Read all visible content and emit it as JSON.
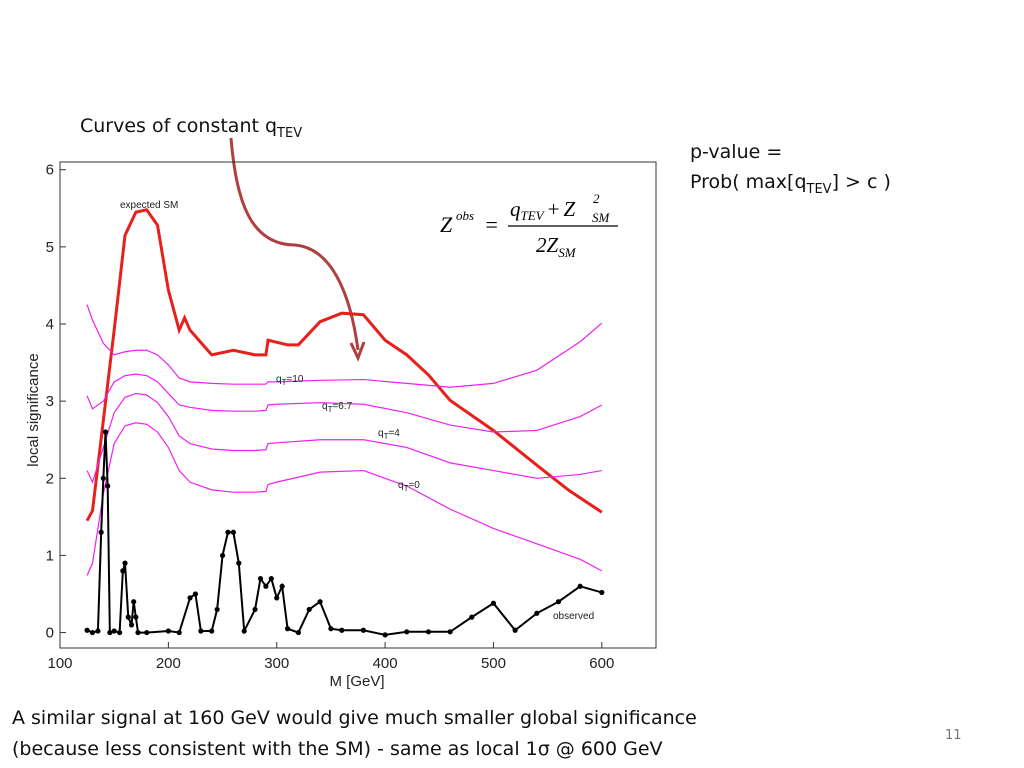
{
  "slide": {
    "annotation": [
      "Curves of constant q",
      "TEV"
    ],
    "pvalue": {
      "line1": "p-value =",
      "line2": [
        "Prob( max[q",
        "TEV",
        "] > c )"
      ]
    },
    "formula": {
      "lhs": "Z",
      "lhs_sup": "obs",
      "eq": "=",
      "num": [
        "q",
        "TEV",
        "+",
        "Z",
        "2",
        "SM"
      ],
      "den": [
        "2Z",
        "SM"
      ]
    },
    "caption": [
      "A similar signal at 160 GeV would give much smaller global significance",
      "(because less consistent with the SM)  - same as local 1σ @ 600 GeV"
    ],
    "page_number": "11"
  },
  "chart_data": {
    "type": "line",
    "x_label": "M [GeV]",
    "y_label": "local significance",
    "xlim": [
      100,
      650
    ],
    "ylim": [
      -0.2,
      6.1
    ],
    "xticks": [
      100,
      200,
      300,
      400,
      500,
      600
    ],
    "yticks": [
      0,
      1,
      2,
      3,
      4,
      5,
      6
    ],
    "grid": false,
    "series": [
      {
        "name": "expected SM",
        "color": "#e8201c",
        "markers": false,
        "x": [
          125,
          130,
          140,
          150,
          160,
          170,
          180,
          190,
          200,
          210,
          215,
          220,
          240,
          260,
          280,
          290,
          292,
          310,
          320,
          340,
          360,
          380,
          400,
          420,
          440,
          460,
          500,
          540,
          570,
          600
        ],
        "values": [
          1.45,
          1.58,
          2.75,
          3.92,
          5.15,
          5.45,
          5.48,
          5.28,
          4.44,
          3.92,
          4.08,
          3.92,
          3.6,
          3.66,
          3.6,
          3.6,
          3.79,
          3.73,
          3.73,
          4.03,
          4.14,
          4.12,
          3.79,
          3.6,
          3.34,
          3.01,
          2.62,
          2.17,
          1.84,
          1.56
        ]
      },
      {
        "label": [
          "q",
          "T",
          "=10"
        ],
        "color": "#f020f0",
        "markers": false,
        "x": [
          125,
          130,
          140,
          150,
          160,
          170,
          180,
          190,
          200,
          210,
          220,
          240,
          260,
          280,
          290,
          292,
          300,
          340,
          380,
          420,
          460,
          500,
          540,
          580,
          600
        ],
        "values": [
          4.25,
          4.05,
          3.75,
          3.6,
          3.64,
          3.66,
          3.66,
          3.6,
          3.47,
          3.3,
          3.25,
          3.23,
          3.22,
          3.22,
          3.22,
          3.25,
          3.25,
          3.27,
          3.28,
          3.23,
          3.18,
          3.23,
          3.4,
          3.77,
          4.01
        ]
      },
      {
        "label": [
          "q",
          "T",
          "=6.7"
        ],
        "color": "#f020f0",
        "markers": false,
        "x": [
          125,
          130,
          140,
          150,
          160,
          170,
          180,
          190,
          200,
          210,
          220,
          240,
          260,
          280,
          290,
          292,
          300,
          340,
          380,
          420,
          460,
          500,
          540,
          580,
          600
        ],
        "values": [
          3.07,
          2.9,
          3.0,
          3.25,
          3.33,
          3.35,
          3.33,
          3.25,
          3.1,
          2.95,
          2.92,
          2.88,
          2.87,
          2.87,
          2.88,
          2.95,
          2.96,
          2.98,
          2.96,
          2.85,
          2.69,
          2.6,
          2.62,
          2.8,
          2.95
        ]
      },
      {
        "label": [
          "q",
          "T",
          "=4"
        ],
        "color": "#f020f0",
        "markers": false,
        "x": [
          125,
          130,
          140,
          150,
          160,
          170,
          180,
          190,
          200,
          210,
          220,
          240,
          260,
          280,
          290,
          292,
          300,
          340,
          380,
          420,
          460,
          500,
          540,
          580,
          600
        ],
        "values": [
          2.1,
          1.95,
          2.4,
          2.85,
          3.05,
          3.1,
          3.08,
          2.98,
          2.8,
          2.55,
          2.45,
          2.38,
          2.36,
          2.36,
          2.37,
          2.45,
          2.46,
          2.5,
          2.5,
          2.4,
          2.2,
          2.1,
          2.0,
          2.05,
          2.1
        ]
      },
      {
        "label": [
          "q",
          "T",
          "=0"
        ],
        "color": "#f020f0",
        "markers": false,
        "x": [
          125,
          130,
          140,
          150,
          160,
          170,
          180,
          190,
          200,
          210,
          220,
          240,
          260,
          280,
          290,
          292,
          300,
          340,
          380,
          420,
          460,
          500,
          540,
          580,
          600
        ],
        "values": [
          0.74,
          0.9,
          1.8,
          2.45,
          2.68,
          2.72,
          2.7,
          2.6,
          2.4,
          2.1,
          1.95,
          1.85,
          1.82,
          1.82,
          1.83,
          1.92,
          1.95,
          2.08,
          2.1,
          1.9,
          1.6,
          1.35,
          1.15,
          0.95,
          0.8
        ]
      },
      {
        "name": "observed",
        "color": "#000000",
        "markers": true,
        "x": [
          125,
          130,
          135,
          138,
          140,
          142,
          144,
          146,
          150,
          155,
          158,
          160,
          163,
          166,
          168,
          170,
          172,
          180,
          200,
          210,
          220,
          225,
          230,
          240,
          245,
          250,
          255,
          260,
          265,
          270,
          280,
          285,
          290,
          295,
          300,
          305,
          310,
          320,
          330,
          340,
          350,
          360,
          380,
          400,
          420,
          440,
          460,
          480,
          500,
          520,
          540,
          560,
          580,
          600
        ],
        "values": [
          0.03,
          0,
          0.02,
          1.3,
          2.0,
          2.6,
          1.9,
          0,
          0.02,
          0,
          0.8,
          0.9,
          0.2,
          0.1,
          0.4,
          0.2,
          0,
          0,
          0.02,
          0,
          0.45,
          0.5,
          0.02,
          0.02,
          0.3,
          1.0,
          1.3,
          1.3,
          0.9,
          0.02,
          0.3,
          0.7,
          0.6,
          0.7,
          0.45,
          0.6,
          0.05,
          0,
          0.3,
          0.4,
          0.05,
          0.03,
          0.03,
          -0.03,
          0.01,
          0.01,
          0.01,
          0.2,
          0.38,
          0.03,
          0.25,
          0.4,
          0.6,
          0.52
        ]
      }
    ]
  }
}
